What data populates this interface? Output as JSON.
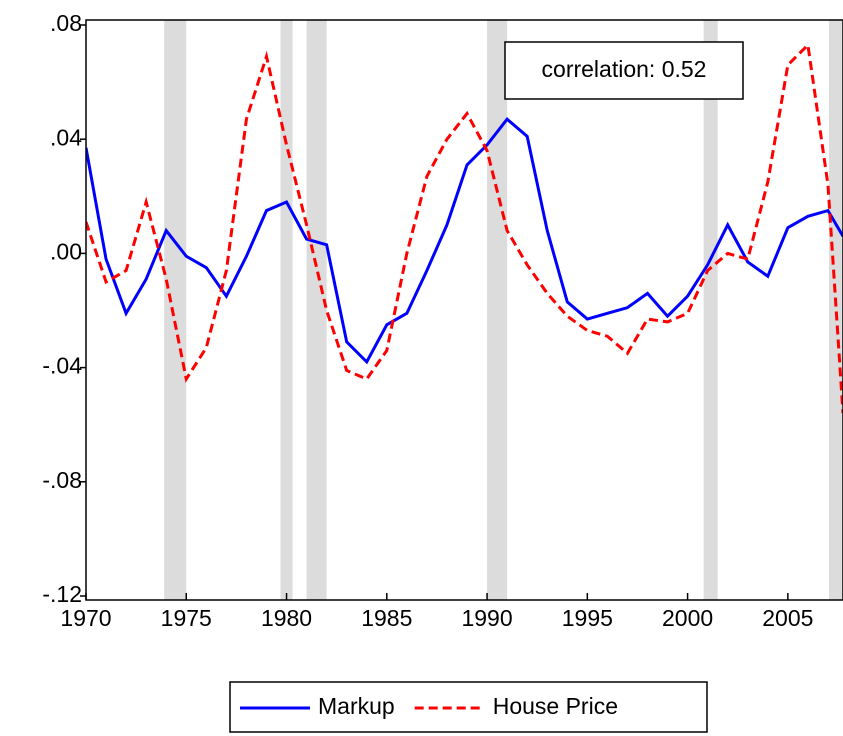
{
  "chart_data": {
    "type": "line",
    "x": [
      1970,
      1971,
      1972,
      1973,
      1974,
      1975,
      1976,
      1977,
      1978,
      1979,
      1980,
      1981,
      1982,
      1983,
      1984,
      1985,
      1986,
      1987,
      1988,
      1989,
      1990,
      1991,
      1992,
      1993,
      1994,
      1995,
      1996,
      1997,
      1998,
      1999,
      2000,
      2001,
      2002,
      2003,
      2004,
      2005,
      2006,
      2007,
      2007.75
    ],
    "series": [
      {
        "name": "Markup",
        "color": "#0000ff",
        "dash": false,
        "values": [
          0.037,
          -0.002,
          -0.021,
          -0.009,
          0.008,
          -0.001,
          -0.005,
          -0.015,
          -0.001,
          0.015,
          0.018,
          0.005,
          0.003,
          -0.031,
          -0.038,
          -0.025,
          -0.021,
          -0.006,
          0.01,
          0.031,
          0.038,
          0.047,
          0.041,
          0.008,
          -0.017,
          -0.023,
          -0.021,
          -0.019,
          -0.014,
          -0.022,
          -0.015,
          -0.004,
          0.01,
          -0.003,
          -0.008,
          0.009,
          0.013,
          0.015,
          0.006
        ]
      },
      {
        "name": "House Price",
        "color": "#ff0000",
        "dash": true,
        "values": [
          0.011,
          -0.01,
          -0.006,
          0.018,
          -0.009,
          -0.044,
          -0.033,
          -0.006,
          0.047,
          0.069,
          0.038,
          0.01,
          -0.02,
          -0.041,
          -0.044,
          -0.034,
          0.0,
          0.027,
          0.04,
          0.049,
          0.036,
          0.008,
          -0.004,
          -0.014,
          -0.022,
          -0.027,
          -0.029,
          -0.035,
          -0.023,
          -0.024,
          -0.021,
          -0.006,
          0.0,
          -0.002,
          0.025,
          0.066,
          0.073,
          0.024,
          -0.056
        ]
      }
    ],
    "shading": [
      [
        1973.9,
        1975.0
      ],
      [
        1979.7,
        1980.3
      ],
      [
        1981.0,
        1982.0
      ],
      [
        1990.0,
        1991.0
      ],
      [
        2000.8,
        2001.5
      ],
      [
        2007.05,
        2007.75
      ]
    ],
    "shading_color": "#dcdcdc",
    "annotation": "correlation: 0.52",
    "xlim": [
      1970,
      2007.75
    ],
    "xticks": [
      1970,
      1975,
      1980,
      1985,
      1990,
      1995,
      2000,
      2005
    ],
    "ylim": [
      -0.12,
      0.08
    ],
    "yticks": [
      {
        "value": -0.12,
        "label": "-.12"
      },
      {
        "value": -0.08,
        "label": "-.08"
      },
      {
        "value": -0.04,
        "label": "-.04"
      },
      {
        "value": 0.0,
        "label": ".00"
      },
      {
        "value": 0.04,
        "label": ".04"
      },
      {
        "value": 0.08,
        "label": ".08"
      }
    ],
    "legend": "bottom"
  }
}
